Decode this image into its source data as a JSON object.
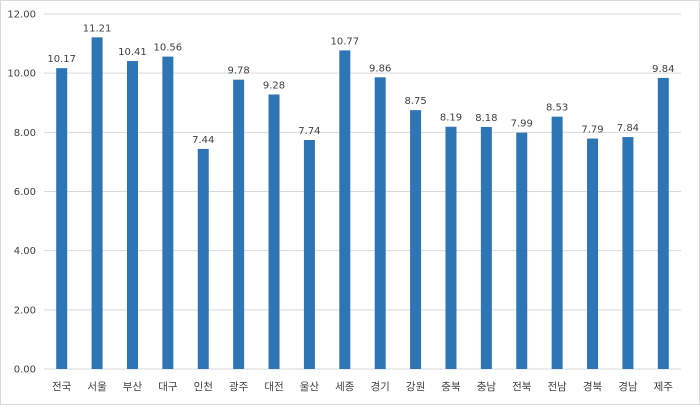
{
  "chart_data": {
    "type": "bar",
    "categories": [
      "전국",
      "서울",
      "부산",
      "대구",
      "인천",
      "광주",
      "대전",
      "울산",
      "세종",
      "경기",
      "강원",
      "충북",
      "충남",
      "전북",
      "전남",
      "경북",
      "경남",
      "제주"
    ],
    "values": [
      10.17,
      11.21,
      10.41,
      10.56,
      7.44,
      9.78,
      9.28,
      7.74,
      10.77,
      9.86,
      8.75,
      8.19,
      8.18,
      7.99,
      8.53,
      7.79,
      7.84,
      9.84
    ],
    "data_labels": [
      "10.17",
      "11.21",
      "10.41",
      "10.56",
      "7.44",
      "9.78",
      "9.28",
      "7.74",
      "10.77",
      "9.86",
      "8.75",
      "8.19",
      "8.18",
      "7.99",
      "8.53",
      "7.79",
      "7.84",
      "9.84"
    ],
    "y_ticks": [
      "0.00",
      "2.00",
      "4.00",
      "6.00",
      "8.00",
      "10.00",
      "12.00"
    ],
    "ylim": [
      0,
      12
    ],
    "title": "",
    "xlabel": "",
    "ylabel": "",
    "grid": "horizontal",
    "bar_color": "#2e75b6",
    "grid_color": "#d9d9d9"
  }
}
